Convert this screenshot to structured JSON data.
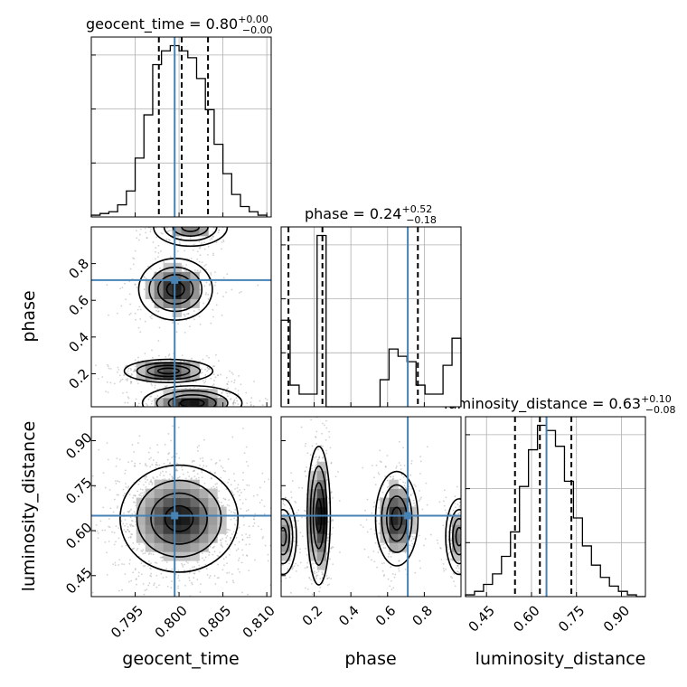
{
  "colors": {
    "truth": "#4682b4",
    "hist": "#000000",
    "quantile": "#000000",
    "scatter": "#9a9a9a"
  },
  "params": [
    {
      "label": "geocent_time",
      "title_value": "0.80",
      "title_plus": "+0.00",
      "title_minus": "−0.00"
    },
    {
      "label": "phase",
      "title_value": "0.24",
      "title_plus": "+0.52",
      "title_minus": "−0.18"
    },
    {
      "label": "luminosity_distance",
      "title_value": "0.63",
      "title_plus": "+0.10",
      "title_minus": "−0.08"
    }
  ],
  "chart_data": {
    "type": "corner",
    "parameters": [
      "geocent_time",
      "phase",
      "luminosity_distance"
    ],
    "truths": {
      "geocent_time": 0.7995,
      "phase": 0.71,
      "luminosity_distance": 0.65
    },
    "ranges": {
      "geocent_time": [
        0.79,
        0.8105
      ],
      "phase": [
        0.02,
        1.0
      ],
      "luminosity_distance": [
        0.38,
        0.98
      ]
    },
    "ticks": {
      "geocent_time": [
        "0.795",
        "0.800",
        "0.805",
        "0.810"
      ],
      "phase": [
        "0.2",
        "0.4",
        "0.6",
        "0.8"
      ],
      "luminosity_distance": [
        "0.45",
        "0.60",
        "0.75",
        "0.90"
      ]
    },
    "phase_row_ticks": [
      "0.2",
      "0.4",
      "0.6",
      "0.8"
    ],
    "dist_row_ticks": [
      "0.45",
      "0.60",
      "0.75",
      "0.90"
    ],
    "quantiles": {
      "geocent_time": [
        0.7977,
        0.8003,
        0.8033
      ],
      "phase": [
        0.06,
        0.245,
        0.765
      ],
      "luminosity_distance": [
        0.545,
        0.628,
        0.733
      ]
    },
    "histograms": {
      "geocent_time": {
        "edges": [
          0.79,
          0.791,
          0.792,
          0.793,
          0.794,
          0.795,
          0.796,
          0.797,
          0.798,
          0.799,
          0.8,
          0.801,
          0.802,
          0.803,
          0.804,
          0.805,
          0.806,
          0.807,
          0.808,
          0.809,
          0.81
        ],
        "counts": [
          1,
          2,
          3,
          7,
          15,
          34,
          59,
          88,
          96,
          99,
          96,
          92,
          80,
          62,
          42,
          25,
          13,
          6,
          3,
          1
        ]
      },
      "phase": {
        "edges": [
          0.02,
          0.069,
          0.118,
          0.167,
          0.216,
          0.265,
          0.314,
          0.363,
          0.412,
          0.461,
          0.51,
          0.559,
          0.608,
          0.657,
          0.706,
          0.755,
          0.804,
          0.853,
          0.902,
          0.951,
          1.0
        ],
        "counts": [
          48,
          12,
          7,
          7,
          95,
          0,
          0,
          0,
          0,
          0,
          0,
          15,
          32,
          28,
          25,
          12,
          7,
          7,
          23,
          38
        ]
      },
      "luminosity_distance": {
        "edges": [
          0.38,
          0.41,
          0.44,
          0.47,
          0.5,
          0.53,
          0.56,
          0.59,
          0.62,
          0.65,
          0.68,
          0.71,
          0.74,
          0.77,
          0.8,
          0.83,
          0.86,
          0.89,
          0.92,
          0.95,
          0.98
        ],
        "counts": [
          1,
          3,
          7,
          13,
          23,
          37,
          63,
          84,
          98,
          95,
          86,
          66,
          45,
          29,
          18,
          11,
          6,
          3,
          1,
          0
        ]
      }
    },
    "blobs_2d": {
      "phase_vs_geocent_time": [
        {
          "cx": 0.7988,
          "cy": 0.215,
          "sx": 0.0024,
          "sy": 0.03,
          "w": 1.0
        },
        {
          "cx": 0.7996,
          "cy": 0.66,
          "sx": 0.002,
          "sy": 0.08,
          "w": 0.9
        },
        {
          "cx": 0.8015,
          "cy": 0.04,
          "sx": 0.0027,
          "sy": 0.045,
          "w": 0.9
        },
        {
          "cx": 0.8013,
          "cy": 1.0,
          "sx": 0.002,
          "sy": 0.05,
          "w": 0.6
        }
      ],
      "luminosity_distance_vs_geocent_time": [
        {
          "cx": 0.8,
          "cy": 0.64,
          "sx": 0.0032,
          "sy": 0.085,
          "w": 1.0
        }
      ],
      "luminosity_distance_vs_phase": [
        {
          "cx": 0.225,
          "cy": 0.65,
          "sx": 0.03,
          "sy": 0.11,
          "w": 1.0
        },
        {
          "cx": 0.65,
          "cy": 0.64,
          "sx": 0.055,
          "sy": 0.075,
          "w": 0.85
        },
        {
          "cx": 0.03,
          "cy": 0.58,
          "sx": 0.035,
          "sy": 0.06,
          "w": 0.55
        },
        {
          "cx": 0.99,
          "cy": 0.58,
          "sx": 0.035,
          "sy": 0.06,
          "w": 0.55
        }
      ]
    }
  }
}
